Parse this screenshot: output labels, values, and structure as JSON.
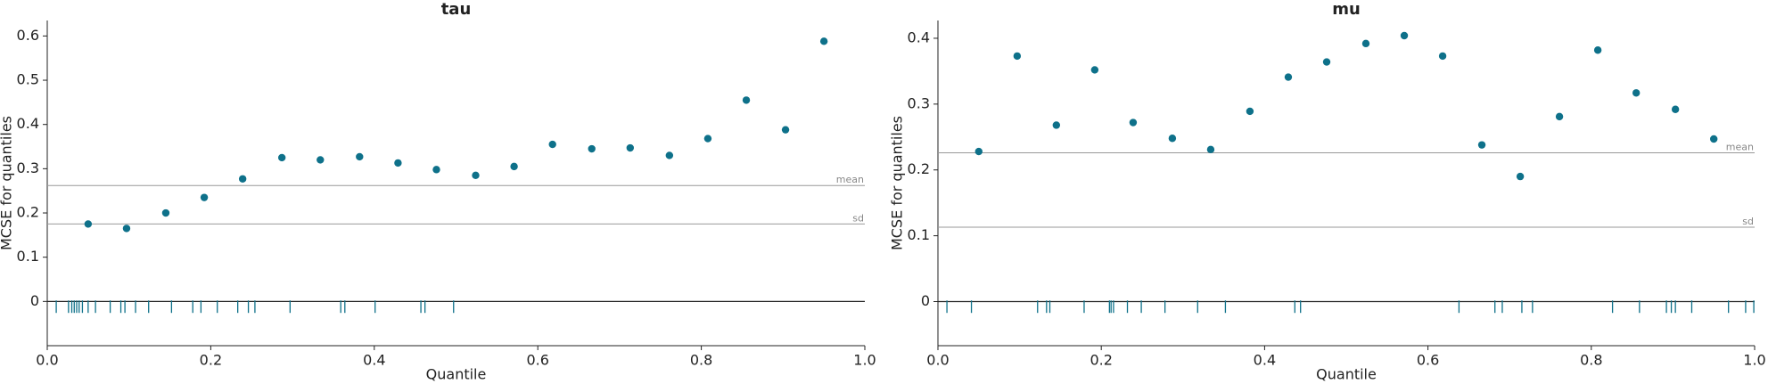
{
  "chart_data": [
    {
      "type": "scatter",
      "title": "tau",
      "xlabel": "Quantile",
      "ylabel": "MCSE for quantiles",
      "color": "#0e718a",
      "x": [
        0.05,
        0.097,
        0.145,
        0.192,
        0.239,
        0.287,
        0.334,
        0.382,
        0.429,
        0.476,
        0.524,
        0.571,
        0.618,
        0.666,
        0.713,
        0.761,
        0.808,
        0.855,
        0.903,
        0.95
      ],
      "values": [
        0.175,
        0.165,
        0.2,
        0.235,
        0.277,
        0.325,
        0.32,
        0.327,
        0.313,
        0.298,
        0.285,
        0.305,
        0.355,
        0.345,
        0.347,
        0.33,
        0.368,
        0.455,
        0.388,
        0.588
      ],
      "hlines": [
        {
          "label": "mean",
          "value": 0.262
        },
        {
          "label": "sd",
          "value": 0.175
        }
      ],
      "rug": [
        0.011,
        0.026,
        0.03,
        0.033,
        0.036,
        0.039,
        0.043,
        0.05,
        0.059,
        0.077,
        0.09,
        0.095,
        0.108,
        0.124,
        0.152,
        0.178,
        0.188,
        0.208,
        0.233,
        0.246,
        0.254,
        0.297,
        0.359,
        0.364,
        0.401,
        0.457,
        0.462,
        0.497
      ],
      "xlim": [
        0,
        1
      ],
      "ylim": [
        -0.1,
        0.635
      ],
      "xticks": [
        {
          "value": 0,
          "label": "0.0"
        },
        0.2,
        0.4,
        0.6,
        0.8,
        {
          "value": 1,
          "label": "1.0"
        }
      ],
      "yticks": [
        0,
        0.1,
        0.2,
        0.3,
        0.4,
        0.5,
        0.6
      ]
    },
    {
      "type": "scatter",
      "title": "mu",
      "xlabel": "Quantile",
      "ylabel": "MCSE for quantiles",
      "color": "#0e718a",
      "x": [
        0.05,
        0.097,
        0.145,
        0.192,
        0.239,
        0.287,
        0.334,
        0.382,
        0.429,
        0.476,
        0.524,
        0.571,
        0.618,
        0.666,
        0.713,
        0.761,
        0.808,
        0.855,
        0.903,
        0.95
      ],
      "values": [
        0.228,
        0.373,
        0.268,
        0.352,
        0.272,
        0.248,
        0.231,
        0.289,
        0.341,
        0.364,
        0.392,
        0.404,
        0.373,
        0.238,
        0.19,
        0.281,
        0.382,
        0.317,
        0.292,
        0.247
      ],
      "hlines": [
        {
          "label": "mean",
          "value": 0.226
        },
        {
          "label": "sd",
          "value": 0.113
        }
      ],
      "rug": [
        0.011,
        0.041,
        0.122,
        0.133,
        0.137,
        0.179,
        0.21,
        0.212,
        0.215,
        0.232,
        0.249,
        0.278,
        0.318,
        0.352,
        0.437,
        0.444,
        0.638,
        0.682,
        0.691,
        0.715,
        0.728,
        0.826,
        0.859,
        0.892,
        0.898,
        0.903,
        0.923,
        0.968,
        0.989,
        0.999
      ],
      "xlim": [
        0,
        1
      ],
      "ylim": [
        -0.067,
        0.427
      ],
      "xticks": [
        {
          "value": 0,
          "label": "0.0"
        },
        0.2,
        0.4,
        0.6,
        0.8,
        {
          "value": 1,
          "label": "1.0"
        }
      ],
      "yticks": [
        0,
        0.1,
        0.2,
        0.3,
        0.4
      ]
    }
  ]
}
